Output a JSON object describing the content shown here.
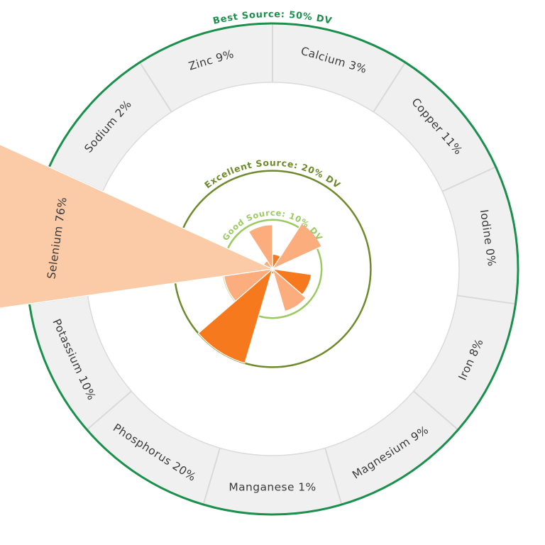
{
  "page": {
    "background": "#ffffff"
  },
  "chart_data": {
    "type": "polar_bar",
    "title": "",
    "units": "% DV",
    "categories": [
      "Calcium",
      "Copper",
      "Iodine",
      "Iron",
      "Magnesium",
      "Manganese",
      "Phosphorus",
      "Potassium",
      "Selenium",
      "Sodium",
      "Zinc"
    ],
    "values": [
      3,
      11,
      0,
      8,
      9,
      1,
      20,
      10,
      76,
      2,
      9
    ],
    "sector_labels": [
      "Calcium 3%",
      "Copper 11%",
      "Iodine 0%",
      "Iron 8%",
      "Magnesium 9%",
      "Manganese 1%",
      "Phosphorus 20%",
      "Potassium 10%",
      "Selenium 76%",
      "Sodium 2%",
      "Zinc 9%"
    ],
    "wedge_colors": [
      "#F7791D",
      "#FBAD7D",
      "#FBAD7D",
      "#F7791D",
      "#FBAD7D",
      "#F7791D",
      "#F7791D",
      "#FBAD7D",
      "#FBCAA6",
      "#FBAD7D",
      "#FBAD7D"
    ],
    "rings": [
      {
        "id": "good-source",
        "label": "Good Source: 10% DV",
        "value": 10,
        "color": "#9BCA62"
      },
      {
        "id": "excellent-source",
        "label": "Excellent Source: 20% DV",
        "value": 20,
        "color": "#6E8A2A"
      },
      {
        "id": "best-source",
        "label": "Best Source: 50% DV",
        "value": 50,
        "color": "#1B8F4C"
      }
    ],
    "axis_max_percent": 50,
    "grid": "circular",
    "legend_position": "none",
    "band": {
      "fill": "#F0F0F0",
      "edge": "#DBDBDB",
      "divider": "#D9D9D9",
      "text_color": "#3B3B3B"
    }
  }
}
